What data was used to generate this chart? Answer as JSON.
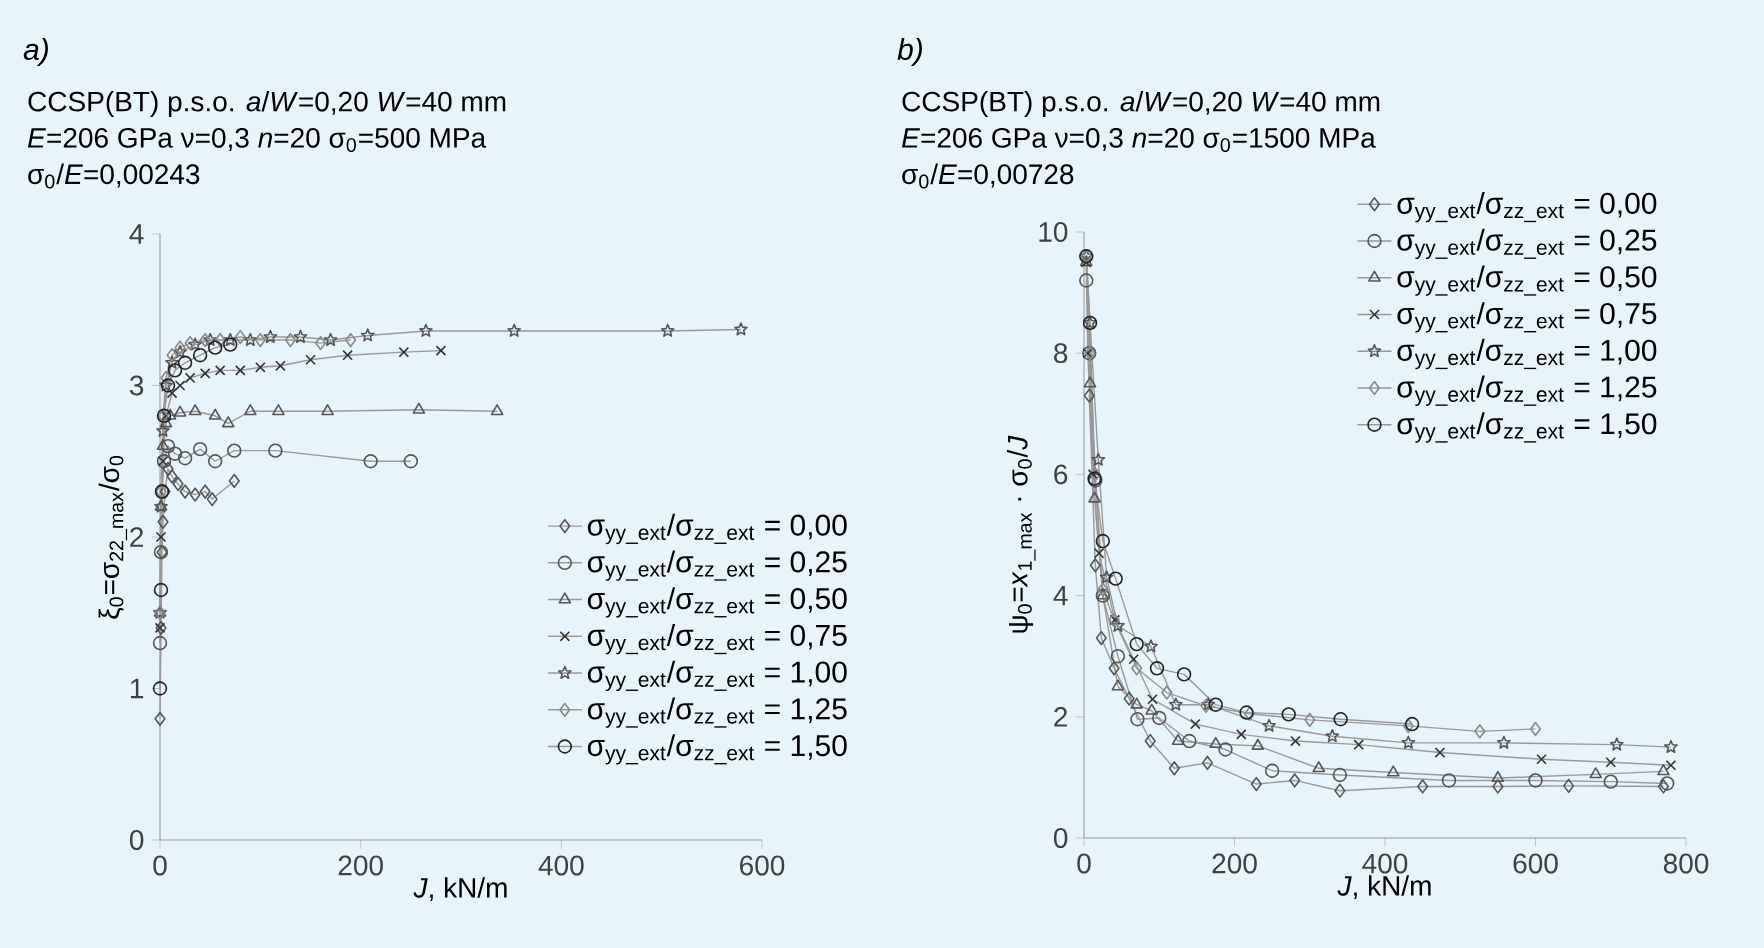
{
  "chart_data": [
    {
      "type": "line",
      "title": "*a)*",
      "subtitle": "CCSP(BT)   p.s.o.   *a*/*W*=0,20   *W*=40 mm",
      "annotations": [
        "*E*=206 GPa   ν=0,3   *n*=20   σ$_{0}$=500 MPa",
        "σ$_{0}$/*E*=0,00243"
      ],
      "xlabel": "*J*, kN/m",
      "ylabel": "ξ$_{0}$=σ$_{22_max}$/σ$_{0}$",
      "xlim": [
        0,
        600
      ],
      "xticks": [
        0,
        200,
        400,
        600
      ],
      "ylim": [
        0,
        4
      ],
      "yticks": [
        0,
        1,
        2,
        3,
        4
      ],
      "legend": "bottom right",
      "series": [
        {
          "name": "σ$_{yy_ext}$/σ$_{zz_ext}$ = 0,00",
          "color": "#555555",
          "marker": "diamond",
          "x": [
            0,
            1,
            2,
            3,
            5,
            8,
            12,
            18,
            25,
            35,
            45,
            52,
            74
          ],
          "values": [
            0.8,
            1.4,
            1.9,
            2.1,
            2.3,
            2.45,
            2.4,
            2.35,
            2.3,
            2.28,
            2.3,
            2.25,
            2.37
          ]
        },
        {
          "name": "σ$_{yy_ext}$/σ$_{zz_ext}$ = 0,25",
          "color": "#555555",
          "marker": "circle",
          "x": [
            0,
            1,
            2,
            4,
            8,
            15,
            25,
            40,
            55,
            74,
            115,
            210,
            250
          ],
          "values": [
            1.3,
            1.9,
            2.3,
            2.5,
            2.6,
            2.55,
            2.52,
            2.58,
            2.5,
            2.57,
            2.57,
            2.5,
            2.5
          ]
        },
        {
          "name": "σ$_{yy_ext}$/σ$_{zz_ext}$ = 0,50",
          "color": "#555555",
          "marker": "triangle",
          "x": [
            0,
            1,
            3,
            6,
            10,
            20,
            35,
            55,
            68,
            90,
            118,
            167,
            258,
            336
          ],
          "values": [
            1.5,
            2.2,
            2.6,
            2.75,
            2.8,
            2.82,
            2.83,
            2.8,
            2.75,
            2.83,
            2.83,
            2.83,
            2.84,
            2.83
          ]
        },
        {
          "name": "σ$_{yy_ext}$/σ$_{zz_ext}$ = 0,75",
          "color": "#333333",
          "marker": "cross",
          "x": [
            0,
            1,
            3,
            6,
            12,
            20,
            30,
            45,
            60,
            80,
            100,
            120,
            150,
            187,
            243,
            280
          ],
          "values": [
            1.4,
            2.0,
            2.5,
            2.8,
            2.95,
            3.0,
            3.05,
            3.08,
            3.1,
            3.1,
            3.12,
            3.13,
            3.17,
            3.2,
            3.22,
            3.23
          ]
        },
        {
          "name": "σ$_{yy_ext}$/σ$_{zz_ext}$ = 1,00",
          "color": "#555555",
          "marker": "star",
          "x": [
            0,
            1,
            3,
            6,
            12,
            20,
            35,
            50,
            70,
            90,
            110,
            140,
            170,
            207,
            265,
            353,
            506,
            579
          ],
          "values": [
            1.5,
            2.2,
            2.7,
            3.0,
            3.15,
            3.22,
            3.27,
            3.3,
            3.3,
            3.3,
            3.32,
            3.32,
            3.3,
            3.33,
            3.36,
            3.36,
            3.36,
            3.37
          ]
        },
        {
          "name": "σ$_{yy_ext}$/σ$_{zz_ext}$ = 1,25",
          "color": "#888888",
          "marker": "diamond",
          "x": [
            0,
            1,
            3,
            6,
            12,
            20,
            30,
            45,
            60,
            80,
            100,
            130,
            160,
            190
          ],
          "values": [
            1.5,
            2.3,
            2.8,
            3.05,
            3.2,
            3.25,
            3.28,
            3.3,
            3.3,
            3.32,
            3.3,
            3.3,
            3.28,
            3.3
          ]
        },
        {
          "name": "σ$_{yy_ext}$/σ$_{zz_ext}$ = 1,50",
          "color": "#222222",
          "marker": "circle",
          "x": [
            0,
            1,
            2,
            4,
            8,
            15,
            25,
            40,
            55,
            70
          ],
          "values": [
            1.0,
            1.65,
            2.3,
            2.8,
            3.0,
            3.1,
            3.15,
            3.2,
            3.25,
            3.27
          ]
        }
      ]
    },
    {
      "type": "line",
      "title": "*b)*",
      "subtitle": "CCSP(BT)   p.s.o.   *a*/*W*=0,20   *W*=40 mm",
      "annotations": [
        "*E*=206 GPa   ν=0,3   *n*=20   σ$_{0}$=1500 MPa",
        "σ$_{0}$/*E*=0,00728"
      ],
      "xlabel": "*J*, kN/m",
      "ylabel": "ψ$_{0}$=*x*$_{1_max}$ · σ$_{0}$/*J*",
      "xlim": [
        0,
        800
      ],
      "xticks": [
        0,
        200,
        400,
        600,
        800
      ],
      "ylim": [
        0,
        10
      ],
      "yticks": [
        0,
        2,
        4,
        6,
        8,
        10
      ],
      "legend": "top right",
      "series": [
        {
          "name": "σ$_{yy_ext}$/σ$_{zz_ext}$ = 0,00",
          "color": "#555555",
          "marker": "diamond",
          "x": [
            7,
            15,
            23,
            40,
            60,
            88,
            120,
            164,
            229,
            280,
            340,
            450,
            550,
            644,
            770
          ],
          "values": [
            7.3,
            4.5,
            3.3,
            2.8,
            2.3,
            1.6,
            1.15,
            1.24,
            0.89,
            0.95,
            0.78,
            0.85,
            0.85,
            0.86,
            0.85
          ]
        },
        {
          "name": "σ$_{yy_ext}$/σ$_{zz_ext}$ = 0,25",
          "color": "#555555",
          "marker": "circle",
          "x": [
            3,
            7,
            15,
            25,
            45,
            71,
            100,
            140,
            188,
            250,
            340,
            485,
            600,
            700,
            775
          ],
          "values": [
            9.2,
            8,
            5.9,
            4,
            3,
            1.96,
            1.98,
            1.6,
            1.46,
            1.11,
            1.04,
            0.95,
            0.95,
            0.93,
            0.9
          ]
        },
        {
          "name": "σ$_{yy_ext}$/σ$_{zz_ext}$ = 0,50",
          "color": "#555555",
          "marker": "triangle",
          "x": [
            3,
            8,
            14,
            25,
            45,
            70,
            90,
            125,
            175,
            231,
            312,
            411,
            550,
            680,
            770
          ],
          "values": [
            9.5,
            7.5,
            5.6,
            4,
            2.5,
            2.2,
            2.1,
            1.6,
            1.55,
            1.52,
            1.15,
            1.08,
            0.99,
            1.05,
            1.1
          ]
        },
        {
          "name": "σ$_{yy_ext}$/σ$_{zz_ext}$ = 0,75",
          "color": "#333333",
          "marker": "cross",
          "x": [
            3,
            5,
            12,
            20,
            41,
            66,
            91,
            148,
            209,
            281,
            365,
            473,
            608,
            700,
            780
          ],
          "values": [
            9.5,
            8,
            6,
            4.7,
            3.6,
            2.95,
            2.29,
            1.88,
            1.71,
            1.6,
            1.54,
            1.41,
            1.3,
            1.25,
            1.2
          ]
        },
        {
          "name": "σ$_{yy_ext}$/σ$_{zz_ext}$ = 1,00",
          "color": "#555555",
          "marker": "star",
          "x": [
            3,
            8,
            19,
            30,
            45,
            89,
            122,
            165,
            246,
            330,
            431,
            558,
            708,
            780
          ],
          "values": [
            9.6,
            8.5,
            6.24,
            4.3,
            3.5,
            3.16,
            2.2,
            2.2,
            1.85,
            1.68,
            1.57,
            1.57,
            1.54,
            1.5
          ]
        },
        {
          "name": "σ$_{yy_ext}$/σ$_{zz_ext}$ = 1,25",
          "color": "#888888",
          "marker": "diamond",
          "x": [
            3,
            8,
            15,
            25,
            40,
            70,
            110,
            162,
            220,
            300,
            431,
            526,
            600
          ],
          "values": [
            9.6,
            8,
            6,
            4.1,
            3.6,
            2.8,
            2.4,
            2.18,
            2.05,
            1.95,
            1.85,
            1.76,
            1.8
          ]
        },
        {
          "name": "σ$_{yy_ext}$/σ$_{zz_ext}$ = 1,50",
          "color": "#222222",
          "marker": "circle",
          "x": [
            3,
            8,
            14,
            25,
            42,
            70,
            97,
            133,
            175,
            216,
            272,
            341,
            436
          ],
          "values": [
            9.6,
            8.5,
            5.93,
            4.9,
            4.28,
            3.2,
            2.8,
            2.7,
            2.2,
            2.07,
            2.04,
            1.96,
            1.88
          ]
        }
      ]
    }
  ]
}
